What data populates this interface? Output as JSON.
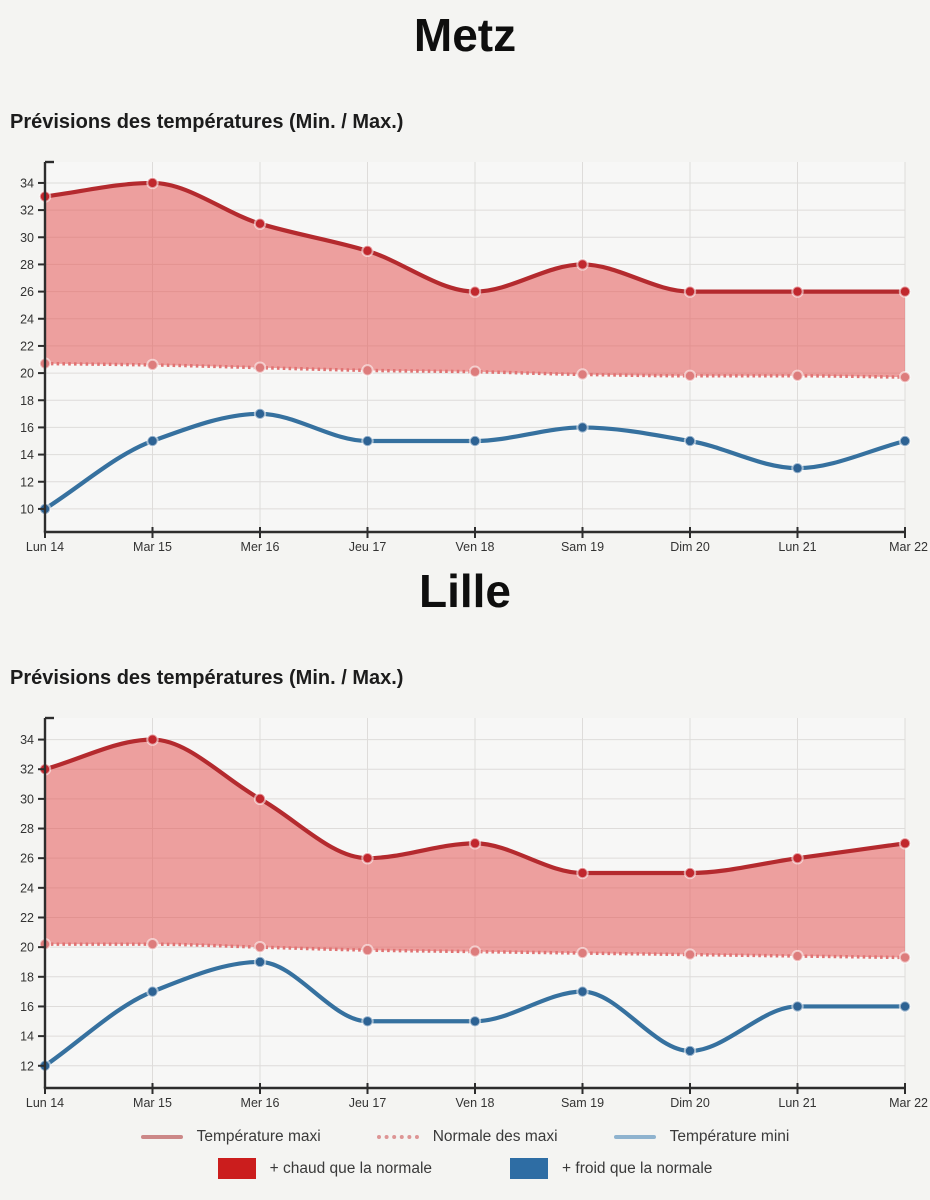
{
  "page": {
    "background": "#f4f4f2"
  },
  "chart_data": [
    {
      "type": "line",
      "title": "Metz",
      "subtitle": "Prévisions des températures (Min. / Max.)",
      "categories": [
        "Lun 14",
        "Mar 15",
        "Mer 16",
        "Jeu 17",
        "Ven 18",
        "Sam 19",
        "Dim 20",
        "Lun 21",
        "Mar 22"
      ],
      "xlabel": "",
      "ylabel": "",
      "ylim": [
        8.3,
        35.1
      ],
      "yticks": [
        10,
        12,
        14,
        16,
        18,
        20,
        22,
        24,
        26,
        28,
        30,
        32,
        34
      ],
      "grid": true,
      "series": [
        {
          "name": "Température maxi",
          "style": "solid",
          "color": "#b42a2e",
          "marker_color": "#c1272d",
          "values": [
            33,
            34,
            31,
            29,
            26,
            28,
            26,
            26,
            26
          ]
        },
        {
          "name": "Normale des maxi",
          "style": "dotted",
          "color": "#e07272",
          "marker_color": "#dd7c7c",
          "values": [
            20.7,
            20.6,
            20.4,
            20.2,
            20.1,
            19.9,
            19.8,
            19.8,
            19.7
          ]
        },
        {
          "name": "Température mini",
          "style": "solid",
          "color": "#36719f",
          "marker_color": "#2d6293",
          "values": [
            10,
            15,
            17,
            15,
            15,
            16,
            15,
            13,
            15
          ]
        }
      ],
      "fill_between": {
        "upper": 0,
        "lower": 1,
        "color": "rgba(229,88,86,0.55)",
        "meaning": "+ chaud que la normale"
      }
    },
    {
      "type": "line",
      "title": "Lille",
      "subtitle": "Prévisions des températures (Min. / Max.)",
      "categories": [
        "Lun 14",
        "Mar 15",
        "Mer 16",
        "Jeu 17",
        "Ven 18",
        "Sam 19",
        "Dim 20",
        "Lun 21",
        "Mar 22"
      ],
      "xlabel": "",
      "ylabel": "",
      "ylim": [
        10.5,
        35.05
      ],
      "yticks": [
        12,
        14,
        16,
        18,
        20,
        22,
        24,
        26,
        28,
        30,
        32,
        34
      ],
      "grid": true,
      "series": [
        {
          "name": "Température maxi",
          "style": "solid",
          "color": "#b42a2e",
          "marker_color": "#c1272d",
          "values": [
            32,
            34,
            30,
            26,
            27,
            25,
            25,
            26,
            27
          ]
        },
        {
          "name": "Normale des maxi",
          "style": "dotted",
          "color": "#e07272",
          "marker_color": "#dd7c7c",
          "values": [
            20.2,
            20.2,
            20.0,
            19.8,
            19.7,
            19.6,
            19.5,
            19.4,
            19.3
          ]
        },
        {
          "name": "Température mini",
          "style": "solid",
          "color": "#36719f",
          "marker_color": "#2d6293",
          "values": [
            12,
            17,
            19,
            15,
            15,
            17,
            13,
            16,
            16
          ]
        }
      ],
      "fill_between": {
        "upper": 0,
        "lower": 1,
        "color": "rgba(229,88,86,0.55)",
        "meaning": "+ chaud que la normale"
      }
    }
  ],
  "legend": {
    "rows": [
      [
        {
          "label": "Température maxi",
          "swatch": "line",
          "color": "#cc8888"
        },
        {
          "label": "Normale des maxi",
          "swatch": "dotted-line",
          "color": "#dd9595"
        },
        {
          "label": "Température mini",
          "swatch": "line",
          "color": "#8fb3cf"
        }
      ],
      [
        {
          "label": "+ chaud que la normale",
          "swatch": "box",
          "color": "#cb1d1d"
        },
        {
          "label": "+ froid que la normale",
          "swatch": "box",
          "color": "#2e6da4"
        }
      ]
    ]
  }
}
